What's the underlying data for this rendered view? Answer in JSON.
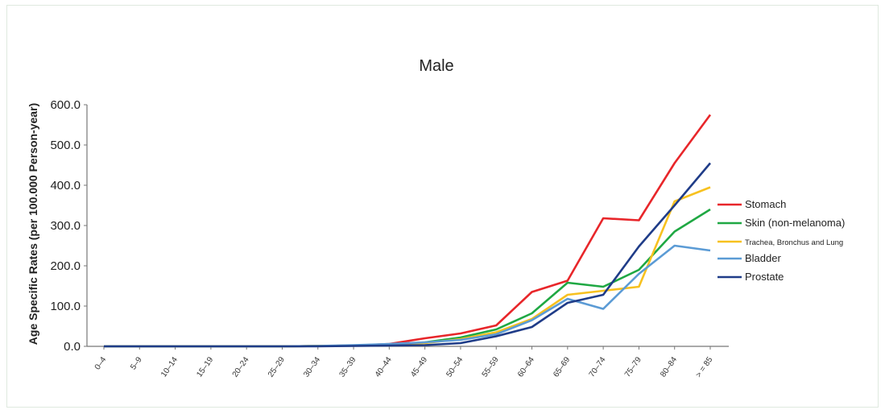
{
  "chart_data": {
    "type": "line",
    "title": "Male",
    "xlabel": "",
    "ylabel": "Age Specific Rates (per 100.000 Person-year)",
    "ylim": [
      0,
      600
    ],
    "yticks": [
      "0.0",
      "100.0",
      "200.0",
      "300.0",
      "400.0",
      "500.0",
      "600.0"
    ],
    "grid": false,
    "legend_position": "right",
    "categories": [
      "0–4",
      "5–9",
      "10–14",
      "15–19",
      "20–24",
      "25–29",
      "30–34",
      "35–39",
      "40–44",
      "45–49",
      "50–54",
      "55–59",
      "60–64",
      "65–69",
      "70–74",
      "75–79",
      "80–84",
      "> = 85"
    ],
    "series": [
      {
        "name": "Stomach",
        "color": "#e8262a",
        "values": [
          0,
          0,
          0,
          0,
          0,
          0,
          1,
          2,
          6,
          20,
          32,
          52,
          135,
          163,
          318,
          313,
          455,
          575
        ]
      },
      {
        "name": "Skin (non-melanoma)",
        "color": "#1fa843",
        "values": [
          0,
          0,
          0,
          0,
          0,
          0,
          1,
          2,
          4,
          10,
          22,
          42,
          82,
          158,
          148,
          190,
          285,
          340
        ]
      },
      {
        "name": "Trachea, Bronchus and Lung",
        "color": "#f7c11f",
        "values": [
          0,
          0,
          0,
          0,
          0,
          0,
          1,
          2,
          4,
          8,
          18,
          35,
          68,
          128,
          138,
          148,
          360,
          395
        ]
      },
      {
        "name": "Bladder",
        "color": "#5b9bd5",
        "values": [
          0,
          0,
          0,
          0,
          0,
          0,
          1,
          3,
          6,
          10,
          16,
          30,
          65,
          118,
          93,
          180,
          250,
          238
        ]
      },
      {
        "name": "Prostate",
        "color": "#1f3c88",
        "values": [
          0,
          0,
          0,
          0,
          0,
          0,
          0,
          1,
          2,
          3,
          8,
          25,
          48,
          108,
          128,
          248,
          350,
          455
        ]
      }
    ]
  }
}
